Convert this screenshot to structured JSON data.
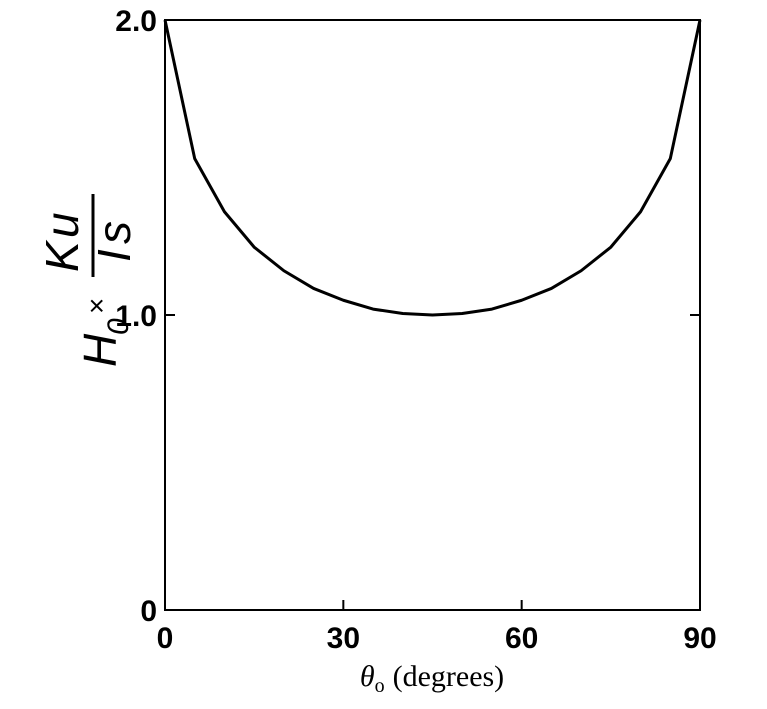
{
  "chart_data": {
    "type": "line",
    "x": [
      0,
      5,
      10,
      15,
      20,
      25,
      30,
      35,
      40,
      45,
      50,
      55,
      60,
      65,
      70,
      75,
      80,
      85,
      90
    ],
    "values": [
      2.0,
      1.53,
      1.35,
      1.23,
      1.15,
      1.09,
      1.05,
      1.02,
      1.005,
      1.0,
      1.005,
      1.02,
      1.05,
      1.09,
      1.15,
      1.23,
      1.35,
      1.53,
      2.0
    ],
    "color": "#000000",
    "xlim": [
      0,
      90
    ],
    "xticks": [
      0,
      30,
      60,
      90
    ],
    "ylim": [
      0,
      2
    ],
    "yticks": [
      0,
      {
        "value": 1,
        "label": "1.0"
      },
      {
        "value": 2,
        "label": "2.0"
      }
    ],
    "xlabel": {
      "symbol": "θ",
      "sub": "o",
      "unit": "(degrees)"
    },
    "ylabel": {
      "lhs": "H",
      "lhs_sub": "0",
      "op": "×",
      "num": "K",
      "num_sub": "u",
      "den": "I",
      "den_sub": "s"
    }
  }
}
